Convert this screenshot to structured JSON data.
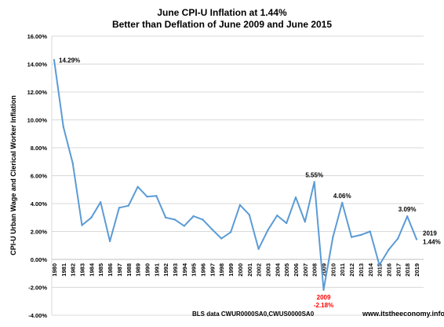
{
  "chart_data": {
    "type": "line",
    "title": "June CPI-U Inflation at 1.44%",
    "subtitle": "Better than Deflation of June 2009 and June 2015",
    "ylabel": "CPI-U Urban Wage and Clerical Worker Inflation",
    "xlabel": "",
    "ylim": [
      -4,
      16
    ],
    "y_ticks": [
      -4,
      -2,
      0,
      2,
      4,
      6,
      8,
      10,
      12,
      14,
      16
    ],
    "y_tick_labels": [
      "-4.00%",
      "-2.00%",
      "0.00%",
      "2.00%",
      "4.00%",
      "6.00%",
      "8.00%",
      "10.00%",
      "12.00%",
      "14.00%",
      "16.00%"
    ],
    "grid": true,
    "series_color": "#5b9bd5",
    "categories": [
      "1980",
      "1981",
      "1982",
      "1983",
      "1984",
      "1985",
      "1986",
      "1987",
      "1988",
      "1989",
      "1990",
      "1991",
      "1992",
      "1993",
      "1994",
      "1995",
      "1996",
      "1997",
      "1998",
      "1999",
      "2000",
      "2001",
      "2002",
      "2003",
      "2004",
      "2005",
      "2006",
      "2007",
      "2008",
      "2009",
      "2010",
      "2011",
      "2012",
      "2013",
      "2014",
      "2015",
      "2016",
      "2017",
      "2018",
      "2019"
    ],
    "values": [
      14.29,
      9.5,
      6.9,
      2.45,
      3.0,
      4.1,
      1.3,
      3.7,
      3.85,
      5.2,
      4.5,
      4.55,
      3.0,
      2.85,
      2.4,
      3.1,
      2.85,
      2.15,
      1.5,
      1.95,
      3.9,
      3.2,
      0.75,
      2.1,
      3.15,
      2.6,
      4.45,
      2.7,
      5.55,
      -2.18,
      1.6,
      4.06,
      1.6,
      1.75,
      2.0,
      -0.4,
      0.7,
      1.5,
      3.09,
      1.44
    ],
    "annotations": [
      {
        "text": "14.29%",
        "x": "1980",
        "color": "#000000"
      },
      {
        "text": "5.55%",
        "x": "2008",
        "color": "#000000"
      },
      {
        "text": "4.06%",
        "x": "2011",
        "color": "#000000"
      },
      {
        "text": "3.09%",
        "x": "2018",
        "color": "#000000"
      },
      {
        "text": "2009",
        "x": "2009",
        "color": "#ff0000"
      },
      {
        "text": "-2.18%",
        "x": "2009",
        "color": "#ff0000"
      },
      {
        "text": "2019",
        "x": "2019",
        "color": "#000000"
      },
      {
        "text": "1.44%",
        "x": "2019",
        "color": "#000000"
      }
    ],
    "footer_source": "BLS data  CWUR0000SA0,CWUS0000SA0",
    "footer_site": "www.itstheeconomy.info"
  }
}
